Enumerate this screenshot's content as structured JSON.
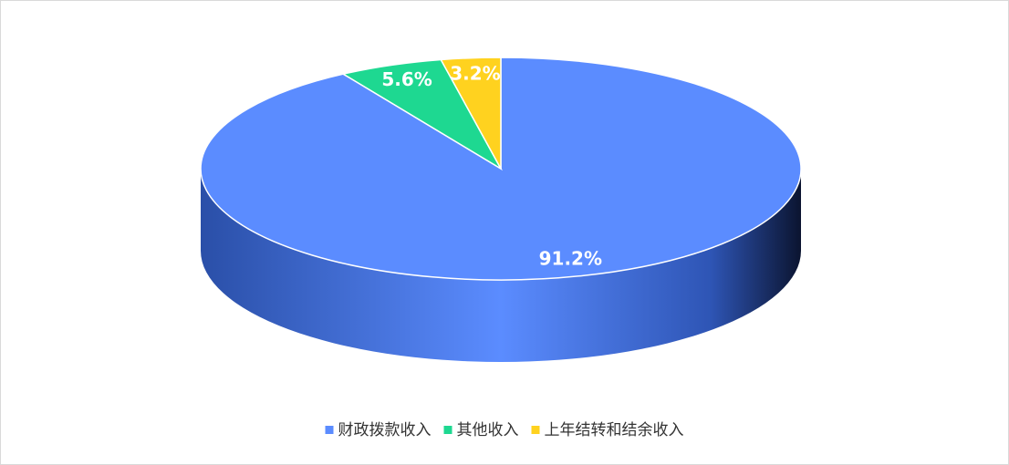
{
  "chart_data": {
    "type": "pie",
    "categories": [
      "财政拨款收入",
      "其他收入",
      "上年结转和结余收入"
    ],
    "values": [
      91.2,
      5.6,
      3.2
    ],
    "value_labels": [
      "91.2%",
      "5.6%",
      "3.2%"
    ],
    "colors": [
      "#5b8cff",
      "#1ed891",
      "#ffd21f"
    ],
    "legend": "bottom"
  }
}
